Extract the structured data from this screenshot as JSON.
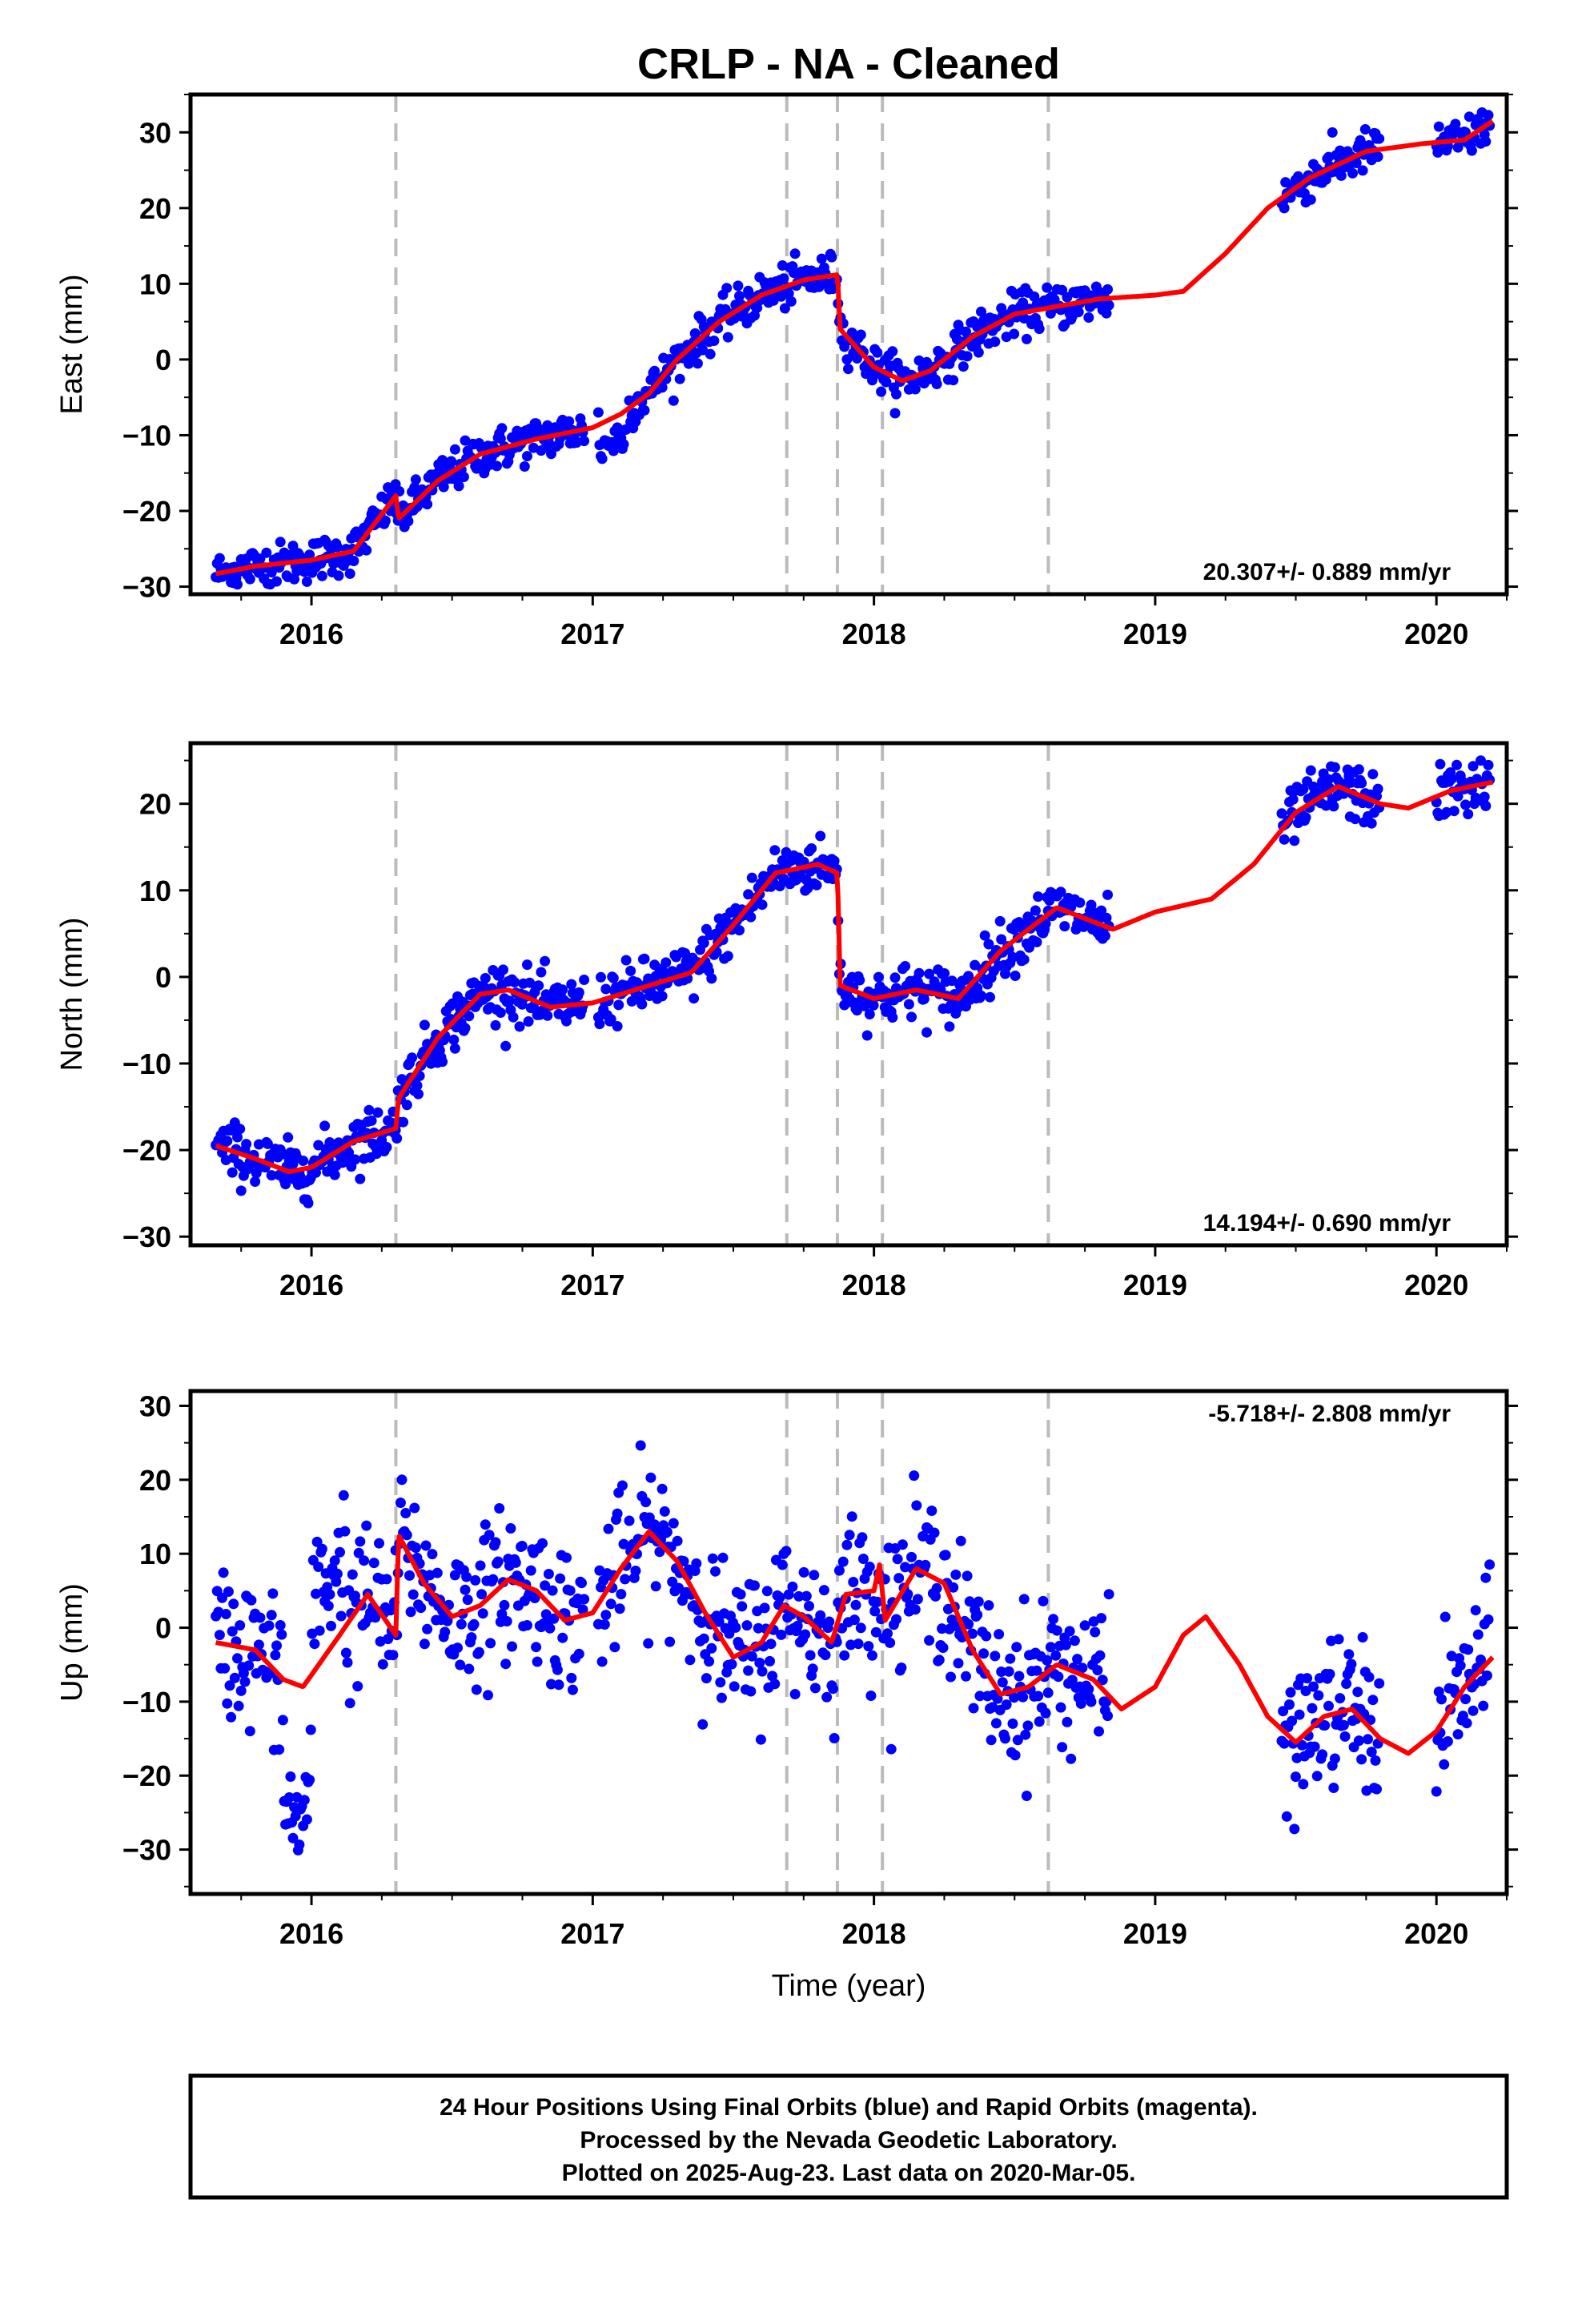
{
  "title": "CRLP  - NA - Cleaned",
  "xlabel": "Time (year)",
  "footer": {
    "line1": "24 Hour Positions Using Final Orbits (blue) and Rapid Orbits (magenta).",
    "line2": "Processed by the Nevada Geodetic Laboratory.",
    "line3": "Plotted on 2025-Aug-23. Last data on 2020-Mar-05."
  },
  "colors": {
    "data": "#0000ff",
    "model": "#ff0000",
    "steps": "#bbbbbb"
  },
  "chart_data": [
    {
      "type": "scatter",
      "ylabel": "East (mm)",
      "rate_label": "20.307+/- 0.889 mm/yr",
      "xlim": [
        2015.57,
        2020.25
      ],
      "ylim": [
        -31,
        35
      ],
      "yticks": [
        -30,
        -20,
        -10,
        0,
        10,
        20,
        30
      ],
      "xticks": [
        2016,
        2017,
        2018,
        2019,
        2020
      ],
      "steps": [
        2016.3,
        2017.69,
        2017.87,
        2018.03,
        2018.62
      ],
      "data_segments": [
        [
          2015.66,
          2016.97
        ],
        [
          2017.02,
          2017.12
        ],
        [
          2017.13,
          2018.84
        ],
        [
          2019.45,
          2019.8
        ],
        [
          2020.0,
          2020.19
        ]
      ],
      "noise": 1.4,
      "model": [
        [
          2015.66,
          -28.3
        ],
        [
          2015.8,
          -27.3
        ],
        [
          2016.0,
          -26.5
        ],
        [
          2016.15,
          -25.3
        ],
        [
          2016.3,
          -18.0
        ],
        [
          2016.31,
          -21.0
        ],
        [
          2016.45,
          -16.0
        ],
        [
          2016.6,
          -12.5
        ],
        [
          2016.8,
          -10.5
        ],
        [
          2017.0,
          -9.0
        ],
        [
          2017.1,
          -7.2
        ],
        [
          2017.2,
          -4.5
        ],
        [
          2017.3,
          0.0
        ],
        [
          2017.45,
          5.0
        ],
        [
          2017.6,
          8.5
        ],
        [
          2017.75,
          10.5
        ],
        [
          2017.87,
          11.2
        ],
        [
          2017.88,
          4.0
        ],
        [
          2018.0,
          -1.0
        ],
        [
          2018.1,
          -2.8
        ],
        [
          2018.2,
          -1.5
        ],
        [
          2018.35,
          3.0
        ],
        [
          2018.5,
          6.0
        ],
        [
          2018.65,
          7.0
        ],
        [
          2018.8,
          8.0
        ],
        [
          2019.0,
          8.5
        ],
        [
          2019.1,
          9.0
        ],
        [
          2019.25,
          14.0
        ],
        [
          2019.4,
          20.0
        ],
        [
          2019.55,
          24.0
        ],
        [
          2019.75,
          27.5
        ],
        [
          2019.95,
          28.5
        ],
        [
          2020.1,
          29.0
        ],
        [
          2020.2,
          31.5
        ]
      ]
    },
    {
      "type": "scatter",
      "ylabel": "North (mm)",
      "rate_label": "14.194+/- 0.690 mm/yr",
      "xlim": [
        2015.57,
        2020.25
      ],
      "ylim": [
        -31,
        27
      ],
      "yticks": [
        -30,
        -20,
        -10,
        0,
        10,
        20
      ],
      "xticks": [
        2016,
        2017,
        2018,
        2019,
        2020
      ],
      "steps": [
        2016.3,
        2017.69,
        2017.87,
        2018.03,
        2018.62
      ],
      "data_segments": [
        [
          2015.66,
          2016.97
        ],
        [
          2017.02,
          2017.12
        ],
        [
          2017.13,
          2018.84
        ],
        [
          2019.45,
          2019.8
        ],
        [
          2020.0,
          2020.19
        ]
      ],
      "noise": 1.6,
      "model": [
        [
          2015.66,
          -19.5
        ],
        [
          2015.8,
          -21.0
        ],
        [
          2015.92,
          -22.5
        ],
        [
          2016.0,
          -22.0
        ],
        [
          2016.15,
          -19.0
        ],
        [
          2016.3,
          -17.5
        ],
        [
          2016.31,
          -14.0
        ],
        [
          2016.45,
          -7.0
        ],
        [
          2016.6,
          -2.0
        ],
        [
          2016.7,
          -1.5
        ],
        [
          2016.85,
          -3.5
        ],
        [
          2017.0,
          -3.0
        ],
        [
          2017.2,
          -1.0
        ],
        [
          2017.35,
          0.5
        ],
        [
          2017.5,
          6.0
        ],
        [
          2017.65,
          12.0
        ],
        [
          2017.8,
          13.0
        ],
        [
          2017.87,
          12.0
        ],
        [
          2017.88,
          -1.0
        ],
        [
          2018.0,
          -2.5
        ],
        [
          2018.15,
          -1.5
        ],
        [
          2018.3,
          -2.5
        ],
        [
          2018.45,
          3.0
        ],
        [
          2018.65,
          8.0
        ],
        [
          2018.85,
          5.5
        ],
        [
          2019.0,
          7.5
        ],
        [
          2019.2,
          9.0
        ],
        [
          2019.35,
          13.0
        ],
        [
          2019.5,
          19.0
        ],
        [
          2019.65,
          22.0
        ],
        [
          2019.8,
          20.0
        ],
        [
          2019.9,
          19.5
        ],
        [
          2020.05,
          21.5
        ],
        [
          2020.2,
          22.5
        ]
      ]
    },
    {
      "type": "scatter",
      "ylabel": "Up (mm)",
      "rate_label": "-5.718+/- 2.808 mm/yr",
      "xlim": [
        2015.57,
        2020.25
      ],
      "ylim": [
        -36,
        32
      ],
      "yticks": [
        -30,
        -20,
        -10,
        0,
        10,
        20,
        30
      ],
      "xticks": [
        2016,
        2017,
        2018,
        2019,
        2020
      ],
      "steps": [
        2016.3,
        2017.69,
        2017.87,
        2018.03,
        2018.62
      ],
      "data_segments": [
        [
          2015.66,
          2016.97
        ],
        [
          2017.02,
          2017.12
        ],
        [
          2017.13,
          2018.84
        ],
        [
          2019.45,
          2019.8
        ],
        [
          2020.0,
          2020.19
        ]
      ],
      "noise": 5.0,
      "model": [
        [
          2015.66,
          -2.0
        ],
        [
          2015.8,
          -3.0
        ],
        [
          2015.9,
          -7.0
        ],
        [
          2015.97,
          -8.0
        ],
        [
          2016.1,
          -1.0
        ],
        [
          2016.2,
          4.5
        ],
        [
          2016.3,
          -1.0
        ],
        [
          2016.31,
          12.5
        ],
        [
          2016.4,
          6.0
        ],
        [
          2016.5,
          1.5
        ],
        [
          2016.6,
          3.0
        ],
        [
          2016.7,
          6.5
        ],
        [
          2016.8,
          5.0
        ],
        [
          2016.9,
          1.0
        ],
        [
          2017.0,
          2.0
        ],
        [
          2017.1,
          8.0
        ],
        [
          2017.2,
          13.0
        ],
        [
          2017.3,
          9.0
        ],
        [
          2017.4,
          2.0
        ],
        [
          2017.5,
          -4.0
        ],
        [
          2017.6,
          -2.0
        ],
        [
          2017.68,
          3.0
        ],
        [
          2017.75,
          1.5
        ],
        [
          2017.85,
          -2.0
        ],
        [
          2017.9,
          4.5
        ],
        [
          2018.0,
          5.0
        ],
        [
          2018.02,
          8.5
        ],
        [
          2018.04,
          1.0
        ],
        [
          2018.15,
          8.0
        ],
        [
          2018.25,
          6.0
        ],
        [
          2018.35,
          -3.0
        ],
        [
          2018.45,
          -9.0
        ],
        [
          2018.55,
          -8.0
        ],
        [
          2018.65,
          -5.0
        ],
        [
          2018.78,
          -7.0
        ],
        [
          2018.88,
          -11.0
        ],
        [
          2019.0,
          -8.0
        ],
        [
          2019.1,
          -1.0
        ],
        [
          2019.18,
          1.5
        ],
        [
          2019.3,
          -5.0
        ],
        [
          2019.4,
          -12.0
        ],
        [
          2019.5,
          -15.5
        ],
        [
          2019.6,
          -12.0
        ],
        [
          2019.7,
          -11.0
        ],
        [
          2019.8,
          -15.0
        ],
        [
          2019.9,
          -17.0
        ],
        [
          2020.0,
          -14.0
        ],
        [
          2020.1,
          -8.0
        ],
        [
          2020.2,
          -4.0
        ]
      ]
    }
  ]
}
